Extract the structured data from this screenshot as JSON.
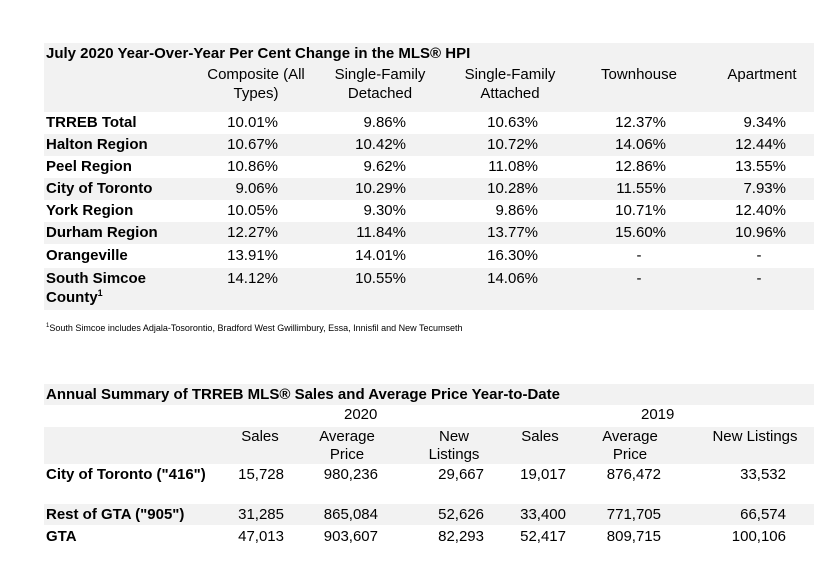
{
  "table1": {
    "title": "July 2020 Year-Over-Year Per Cent Change in the MLS® HPI",
    "headers": [
      "Composite (All Types)",
      "Single-Family Detached",
      "Single-Family Attached",
      "Townhouse",
      "Apartment"
    ],
    "rows": [
      {
        "label": "TRREB Total",
        "values": [
          "10.01%",
          "9.86%",
          "10.63%",
          "12.37%",
          "9.34%"
        ]
      },
      {
        "label": "Halton Region",
        "values": [
          "10.67%",
          "10.42%",
          "10.72%",
          "14.06%",
          "12.44%"
        ]
      },
      {
        "label": "Peel Region",
        "values": [
          "10.86%",
          "9.62%",
          "11.08%",
          "12.86%",
          "13.55%"
        ]
      },
      {
        "label": "City of Toronto",
        "values": [
          "9.06%",
          "10.29%",
          "10.28%",
          "11.55%",
          "7.93%"
        ]
      },
      {
        "label": "York Region",
        "values": [
          "10.05%",
          "9.30%",
          "9.86%",
          "10.71%",
          "12.40%"
        ]
      },
      {
        "label": "Durham Region",
        "values": [
          "12.27%",
          "11.84%",
          "13.77%",
          "15.60%",
          "10.96%"
        ]
      },
      {
        "label": "Orangeville",
        "values": [
          "13.91%",
          "14.01%",
          "16.30%",
          "-",
          "-"
        ]
      },
      {
        "label": "South Simcoe County",
        "footnote_mark": "1",
        "values": [
          "14.12%",
          "10.55%",
          "14.06%",
          "-",
          "-"
        ]
      }
    ],
    "footnote_mark": "1",
    "footnote": "South Simcoe includes Adjala-Tosorontio, Bradford West Gwillimbury, Essa, Innisfil and New Tecumseth"
  },
  "table2": {
    "title": "Annual Summary of TRREB MLS® Sales and Average Price Year-to-Date",
    "year_2020": "2020",
    "year_2019": "2019",
    "headers": [
      "Sales",
      "Average Price",
      "New Listings",
      "Sales",
      "Average Price",
      "New Listings"
    ],
    "rows": [
      {
        "label": "City of Toronto (\"416\")",
        "values": [
          "15,728",
          "980,236",
          "29,667",
          "19,017",
          "876,472",
          "33,532"
        ]
      },
      {
        "label": "Rest of GTA (\"905\")",
        "values": [
          "31,285",
          "865,084",
          "52,626",
          "33,400",
          "771,705",
          "66,574"
        ]
      },
      {
        "label": "GTA",
        "values": [
          "47,013",
          "903,607",
          "82,293",
          "52,417",
          "809,715",
          "100,106"
        ]
      }
    ]
  },
  "colors": {
    "band": "#f2f2f2",
    "text": "#000000"
  }
}
